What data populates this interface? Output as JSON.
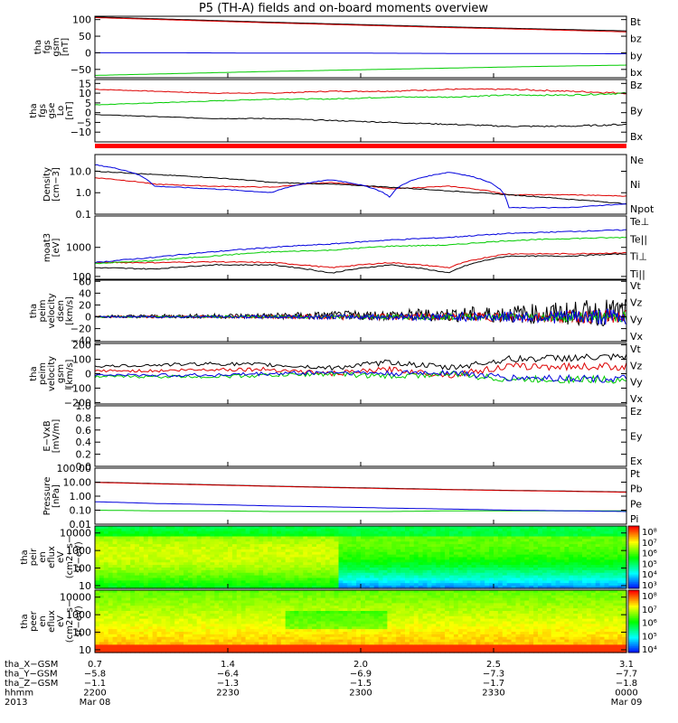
{
  "title": "P5 (TH-A) fields and on-board moments overview",
  "chart_data": [
    {
      "type": "line",
      "ylabel": [
        "tha",
        "fgs",
        "gsm",
        "[nT]"
      ],
      "yticks": [
        "100",
        "50",
        "0",
        "−50"
      ],
      "ylim": [
        -75,
        110
      ],
      "series": [
        {
          "name": "Bt",
          "color": "#000000",
          "values": [
            108,
            100,
            92,
            85,
            78,
            72,
            66
          ]
        },
        {
          "name": "bz",
          "color": "#dd0000",
          "values": [
            106,
            98,
            90,
            83,
            76,
            70,
            63
          ]
        },
        {
          "name": "by",
          "color": "#00cc00",
          "values": [
            -68,
            -62,
            -56,
            -51,
            -46,
            -41,
            -37
          ]
        },
        {
          "name": "bx",
          "color": "#0000dd",
          "values": [
            0,
            0,
            -1,
            -1,
            -2,
            -2,
            -3
          ]
        }
      ]
    },
    {
      "type": "line",
      "ylabel": [
        "tha",
        "fgs",
        "gse",
        "Lo",
        "[nT]"
      ],
      "yticks": [
        "15",
        "10",
        "5",
        "0",
        "−5",
        "−10"
      ],
      "ylim": [
        -15,
        17
      ],
      "series": [
        {
          "name": "Bz",
          "color": "#dd0000",
          "values": [
            12,
            11,
            10,
            10,
            11,
            11,
            12,
            12,
            11,
            10
          ]
        },
        {
          "name": "By",
          "color": "#00cc00",
          "values": [
            4,
            5,
            6,
            7,
            7,
            8,
            8,
            9,
            9,
            10
          ]
        },
        {
          "name": "Bx",
          "color": "#000000",
          "values": [
            -1,
            -2,
            -3,
            -3,
            -4,
            -5,
            -6,
            -7,
            -7,
            -6
          ]
        }
      ]
    },
    {
      "type": "line",
      "ylabel": [
        "Density",
        "[cm−3]"
      ],
      "yscale": "log",
      "yticks": [
        "10.0",
        "1.0",
        "0.1"
      ],
      "ylim": [
        0.1,
        60
      ],
      "series": [
        {
          "name": "Ne",
          "color": "#dd0000",
          "values": [
            5.0,
            2.5,
            2.0,
            1.8,
            3.0,
            1.5,
            2.0,
            0.8,
            0.8,
            0.7
          ]
        },
        {
          "name": "Ni",
          "color": "#000000",
          "values": [
            10.0,
            7.0,
            5.0,
            3.0,
            2.5,
            1.8,
            1.2,
            0.8,
            0.5,
            0.3
          ]
        },
        {
          "name": "Npot",
          "color": "#0000dd",
          "values": [
            20.0,
            2.0,
            1.5,
            1.0,
            4.0,
            0.6,
            9.0,
            0.2,
            0.2,
            0.3
          ]
        }
      ]
    },
    {
      "type": "line",
      "ylabel": [
        "moat3",
        "[eV]"
      ],
      "yscale": "log",
      "yticks": [
        "1000",
        "100"
      ],
      "ylim": [
        80,
        12000
      ],
      "series": [
        {
          "name": "Te⊥",
          "color": "#dd0000",
          "values": [
            300,
            300,
            320,
            300,
            200,
            300,
            200,
            600,
            600,
            650
          ]
        },
        {
          "name": "Te||",
          "color": "#000000",
          "values": [
            200,
            180,
            250,
            250,
            130,
            250,
            130,
            500,
            500,
            600
          ]
        },
        {
          "name": "Ti⊥",
          "color": "#0000dd",
          "values": [
            300,
            450,
            700,
            1000,
            1300,
            1800,
            2200,
            3000,
            3500,
            4000
          ]
        },
        {
          "name": "Ti||",
          "color": "#00cc00",
          "values": [
            280,
            350,
            500,
            700,
            800,
            1100,
            1200,
            1700,
            2000,
            2200
          ]
        }
      ]
    },
    {
      "type": "line",
      "ylabel": [
        "tha",
        "peim",
        "velocity",
        "dsen",
        "[km/s]"
      ],
      "yticks": [
        "60",
        "40",
        "20",
        "0",
        "−20",
        "−40"
      ],
      "ylim": [
        -42,
        62
      ],
      "series": [
        {
          "name": "Vt",
          "color": "#000000",
          "amplitude": [
            2,
            3,
            4,
            5,
            7,
            9,
            12,
            15,
            20,
            25
          ]
        },
        {
          "name": "Vz",
          "color": "#dd0000",
          "amplitude": [
            1,
            2,
            2,
            3,
            4,
            5,
            6,
            8,
            10,
            12
          ]
        },
        {
          "name": "Vy",
          "color": "#00cc00",
          "amplitude": [
            1,
            1,
            2,
            2,
            3,
            4,
            5,
            6,
            8,
            10
          ]
        },
        {
          "name": "Vx",
          "color": "#0000dd",
          "amplitude": [
            1,
            2,
            2,
            3,
            4,
            5,
            7,
            9,
            12,
            15
          ]
        }
      ]
    },
    {
      "type": "line",
      "ylabel": [
        "tha",
        "peim",
        "velocity",
        "gsm",
        "[km/s]"
      ],
      "yticks": [
        "200",
        "100",
        "0",
        "−100",
        "−200"
      ],
      "ylim": [
        -210,
        210
      ],
      "series": [
        {
          "name": "Vt",
          "color": "#000000",
          "values": [
            50,
            60,
            70,
            60,
            40,
            80,
            40,
            100,
            110,
            110
          ]
        },
        {
          "name": "Vz",
          "color": "#dd0000",
          "values": [
            20,
            20,
            30,
            30,
            0,
            30,
            -10,
            50,
            50,
            50
          ]
        },
        {
          "name": "Vy",
          "color": "#00cc00",
          "values": [
            -20,
            -20,
            -20,
            -10,
            0,
            -20,
            0,
            -40,
            -40,
            -40
          ]
        },
        {
          "name": "Vx",
          "color": "#0000dd",
          "values": [
            -10,
            -10,
            -10,
            0,
            10,
            0,
            10,
            -30,
            -30,
            -40
          ]
        }
      ]
    },
    {
      "type": "line",
      "ylabel": [
        "E−VxB",
        "[mV/m]"
      ],
      "yticks": [
        "1.0",
        "0.8",
        "0.6",
        "0.4",
        "0.2",
        "0.0"
      ],
      "ylim": [
        0,
        1
      ],
      "series": [
        {
          "name": "Ez",
          "color": "#dd0000",
          "values": []
        },
        {
          "name": "Ey",
          "color": "#00cc00",
          "values": []
        },
        {
          "name": "Ex",
          "color": "#0000dd",
          "values": []
        }
      ]
    },
    {
      "type": "line",
      "ylabel": [
        "Pressure",
        "[nPa]"
      ],
      "yscale": "log",
      "yticks": [
        "100.00",
        "10.00",
        "1.00",
        "0.10",
        "0.01"
      ],
      "ylim": [
        0.01,
        100
      ],
      "series": [
        {
          "name": "Pt",
          "color": "#000000",
          "values": [
            10,
            8,
            6.5,
            5.2,
            4.3,
            3.6,
            3.0,
            2.6,
            2.3,
            2.0
          ]
        },
        {
          "name": "Pb",
          "color": "#dd0000",
          "values": [
            9.5,
            7.6,
            6.2,
            5.0,
            4.1,
            3.4,
            2.9,
            2.5,
            2.2,
            1.9
          ]
        },
        {
          "name": "Pe",
          "color": "#00cc00",
          "values": [
            0.1,
            0.09,
            0.09,
            0.08,
            0.08,
            0.08,
            0.09,
            0.09,
            0.09,
            0.09
          ]
        },
        {
          "name": "Pi",
          "color": "#0000dd",
          "values": [
            0.4,
            0.3,
            0.25,
            0.2,
            0.17,
            0.14,
            0.12,
            0.1,
            0.09,
            0.08
          ]
        }
      ]
    },
    {
      "type": "heatmap",
      "ylabel": [
        "tha",
        "peir",
        "en",
        "eflux",
        "eV",
        "(cm2−s−",
        "sr−eV)"
      ],
      "yscale": "log",
      "yticks": [
        "10000",
        "1000",
        "100",
        "10"
      ],
      "ylim": [
        7,
        25000
      ],
      "colorbar": {
        "min_exp": 3,
        "max_exp": 8,
        "labels": [
          "10⁸",
          "10⁷",
          "10⁶",
          "10⁵",
          "10⁴",
          "10³"
        ]
      }
    },
    {
      "type": "heatmap",
      "ylabel": [
        "tha",
        "peer",
        "en",
        "eflux",
        "eV",
        "(cm2−s−",
        "sr−eV)"
      ],
      "yscale": "log",
      "yticks": [
        "10000",
        "1000",
        "100",
        "10"
      ],
      "ylim": [
        7,
        25000
      ],
      "colorbar": {
        "min_exp": 4,
        "max_exp": 8,
        "labels": [
          "10⁸",
          "10⁷",
          "10⁶",
          "10⁵",
          "10⁴"
        ]
      }
    }
  ],
  "xaxis": {
    "ticks": [
      {
        "row1": "0.7",
        "row2": "−5.8",
        "row3": "−1.1",
        "row4": "2200",
        "row5": "Mar 08"
      },
      {
        "row1": "1.4",
        "row2": "−6.4",
        "row3": "−1.3",
        "row4": "2230",
        "row5": ""
      },
      {
        "row1": "2.0",
        "row2": "−6.9",
        "row3": "−1.5",
        "row4": "2300",
        "row5": ""
      },
      {
        "row1": "2.5",
        "row2": "−7.3",
        "row3": "−1.7",
        "row4": "2330",
        "row5": ""
      },
      {
        "row1": "3.1",
        "row2": "−7.7",
        "row3": "−1.8",
        "row4": "0000",
        "row5": "Mar 09"
      }
    ],
    "row_labels": [
      "tha_X−GSM",
      "tha_Y−GSM",
      "tha_Z−GSM",
      "hhmm",
      "2013"
    ]
  }
}
